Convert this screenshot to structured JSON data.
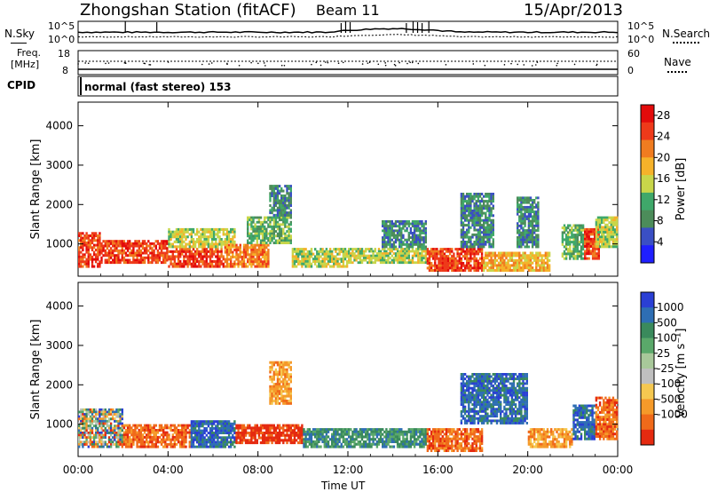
{
  "header": {
    "station": "Zhongshan Station (fitACF)",
    "beam": "Beam 11",
    "date": "15/Apr/2013"
  },
  "top_panels": {
    "nsky_label": "N.Sky",
    "nsearch_label": "N.Search",
    "log_tick_high": "10^5",
    "log_tick_low": "10^0",
    "freq_label_line1": "Freq.",
    "freq_label_line2": "[MHz]",
    "freq_ticks": [
      "18",
      "8"
    ],
    "nave_label": "Nave",
    "nave_ticks": [
      "60",
      "0"
    ],
    "cpid_label": "CPID",
    "cpid_value": "normal (fast stereo) 153"
  },
  "chart_data": [
    {
      "type": "heatmap",
      "title": "",
      "xlabel": "Time UT",
      "ylabel": "Slant Range [km]",
      "xlim": [
        "00:00",
        "24:00"
      ],
      "ylim": [
        180,
        4600
      ],
      "x_ticks": [
        "00:00",
        "04:00",
        "08:00",
        "12:00",
        "16:00",
        "20:00",
        "00:00"
      ],
      "y_ticks": [
        1000,
        2000,
        3000,
        4000
      ],
      "colorbar": {
        "label": "Power [dB]",
        "ticks": [
          4,
          8,
          12,
          16,
          20,
          24,
          28
        ],
        "range": [
          0,
          30
        ],
        "colors": [
          "#1f1fff",
          "#3a4fc4",
          "#4c8c5a",
          "#3fa86a",
          "#c8d64a",
          "#f5b22a",
          "#f07c20",
          "#ee3a1a",
          "#e30b0b"
        ]
      },
      "regions": [
        {
          "t": [
            0.0,
            1.0
          ],
          "r": [
            400,
            1300
          ],
          "level": 26
        },
        {
          "t": [
            1.0,
            4.0
          ],
          "r": [
            500,
            1100
          ],
          "level": 27
        },
        {
          "t": [
            4.0,
            6.5
          ],
          "r": [
            400,
            900
          ],
          "level": 26
        },
        {
          "t": [
            4.0,
            7.0
          ],
          "r": [
            900,
            1400
          ],
          "level": 14
        },
        {
          "t": [
            6.5,
            8.5
          ],
          "r": [
            400,
            1000
          ],
          "level": 22
        },
        {
          "t": [
            7.5,
            9.5
          ],
          "r": [
            1000,
            1700
          ],
          "level": 12
        },
        {
          "t": [
            8.5,
            9.5
          ],
          "r": [
            1700,
            2500
          ],
          "level": 8
        },
        {
          "t": [
            9.5,
            12.0
          ],
          "r": [
            400,
            900
          ],
          "level": 16
        },
        {
          "t": [
            12.0,
            15.5
          ],
          "r": [
            500,
            900
          ],
          "level": 14
        },
        {
          "t": [
            13.5,
            15.5
          ],
          "r": [
            900,
            1600
          ],
          "level": 8
        },
        {
          "t": [
            15.5,
            18.0
          ],
          "r": [
            300,
            900
          ],
          "level": 25
        },
        {
          "t": [
            17.0,
            18.5
          ],
          "r": [
            900,
            2300
          ],
          "level": 9
        },
        {
          "t": [
            18.0,
            21.0
          ],
          "r": [
            300,
            800
          ],
          "level": 20
        },
        {
          "t": [
            19.5,
            20.5
          ],
          "r": [
            900,
            2200
          ],
          "level": 7
        },
        {
          "t": [
            21.5,
            22.5
          ],
          "r": [
            600,
            1500
          ],
          "level": 12
        },
        {
          "t": [
            22.5,
            23.2
          ],
          "r": [
            600,
            1400
          ],
          "level": 26
        },
        {
          "t": [
            23.0,
            24.0
          ],
          "r": [
            900,
            1700
          ],
          "level": 14
        }
      ]
    },
    {
      "type": "heatmap",
      "title": "",
      "xlabel": "Time UT",
      "ylabel": "Slant Range [km]",
      "xlim": [
        "00:00",
        "24:00"
      ],
      "ylim": [
        180,
        4600
      ],
      "x_ticks": [
        "00:00",
        "04:00",
        "08:00",
        "12:00",
        "16:00",
        "20:00",
        "00:00"
      ],
      "y_ticks": [
        1000,
        2000,
        3000,
        4000
      ],
      "colorbar": {
        "label": "Velocity [m s⁻¹]",
        "ticks": [
          "1000",
          "500",
          "100",
          "25",
          "-25",
          "-100",
          "-500",
          "-1000"
        ],
        "colors": [
          "#2a3fd4",
          "#2e6eb4",
          "#3a8a5c",
          "#5aa86a",
          "#a8c89a",
          "#bfbfbf",
          "#f5c850",
          "#f59a2a",
          "#f06a1a",
          "#e52a10"
        ]
      },
      "regions": [
        {
          "t": [
            0.0,
            2.0
          ],
          "r": [
            400,
            1400
          ],
          "v": "mixed"
        },
        {
          "t": [
            2.0,
            5.0
          ],
          "r": [
            400,
            1000
          ],
          "v": "-300"
        },
        {
          "t": [
            5.0,
            7.0
          ],
          "r": [
            400,
            1100
          ],
          "v": "300"
        },
        {
          "t": [
            7.0,
            10.0
          ],
          "r": [
            500,
            1000
          ],
          "v": "-800"
        },
        {
          "t": [
            8.5,
            9.5
          ],
          "r": [
            1500,
            2600
          ],
          "v": "-200"
        },
        {
          "t": [
            10.0,
            15.5
          ],
          "r": [
            400,
            900
          ],
          "v": "150"
        },
        {
          "t": [
            15.5,
            18.0
          ],
          "r": [
            300,
            900
          ],
          "v": "-400"
        },
        {
          "t": [
            17.0,
            20.0
          ],
          "r": [
            1000,
            2300
          ],
          "v": "300"
        },
        {
          "t": [
            20.0,
            22.0
          ],
          "r": [
            400,
            900
          ],
          "v": "-150"
        },
        {
          "t": [
            22.0,
            23.0
          ],
          "r": [
            600,
            1500
          ],
          "v": "600"
        },
        {
          "t": [
            23.0,
            24.0
          ],
          "r": [
            600,
            1700
          ],
          "v": "-300"
        }
      ]
    }
  ]
}
